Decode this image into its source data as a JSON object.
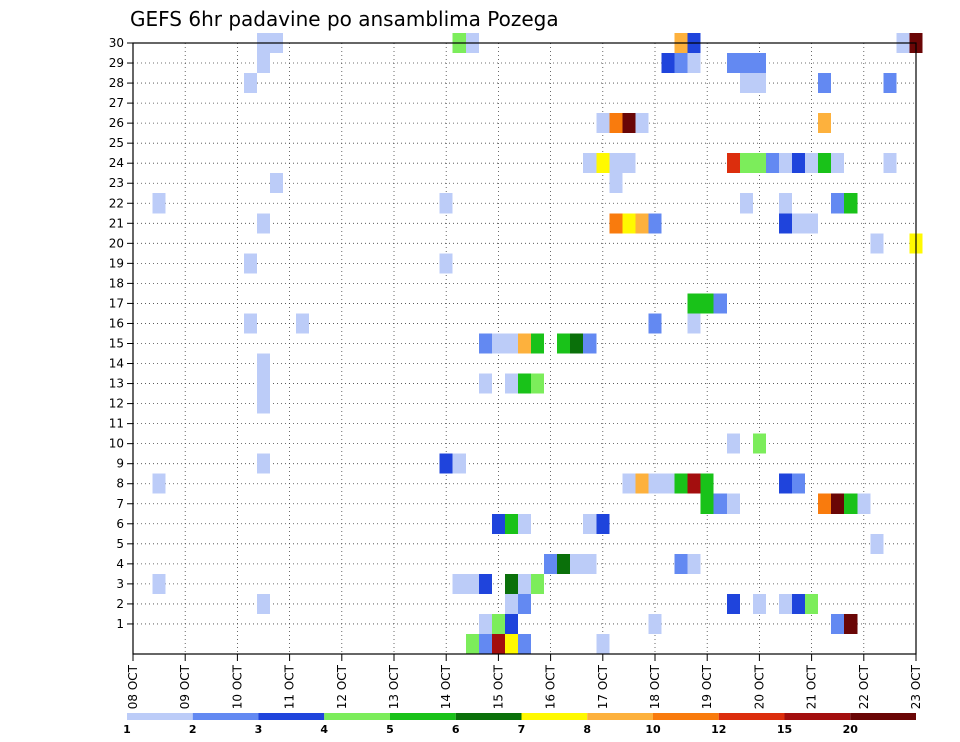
{
  "chart_data": {
    "type": "heatmap",
    "title": "GEFS 6hr padavine po ansamblima Pozega",
    "x_tick_labels": [
      "08 OCT",
      "09 OCT",
      "10 OCT",
      "11 OCT",
      "12 OCT",
      "13 OCT",
      "14 OCT",
      "15 OCT",
      "16 OCT",
      "17 OCT",
      "18 OCT",
      "19 OCT",
      "20 OCT",
      "21 OCT",
      "22 OCT",
      "23 OCT"
    ],
    "y_tick_labels": [
      "1",
      "2",
      "3",
      "4",
      "5",
      "6",
      "7",
      "8",
      "9",
      "10",
      "11",
      "12",
      "13",
      "14",
      "15",
      "16",
      "17",
      "18",
      "19",
      "20",
      "21",
      "22",
      "23",
      "24",
      "25",
      "26",
      "27",
      "28",
      "29",
      "30"
    ],
    "ylim": [
      0,
      30
    ],
    "steps_per_day": 4,
    "colorbar": {
      "labels": [
        "1",
        "2",
        "3",
        "4",
        "5",
        "6",
        "7",
        "8",
        "10",
        "12",
        "15",
        "20"
      ],
      "colors": [
        "#bcccf8",
        "#6389f2",
        "#1f44dc",
        "#7ced5b",
        "#19c219",
        "#0a700a",
        "#fff900",
        "#fdb13d",
        "#f97b0d",
        "#dc2e0d",
        "#a30e0e",
        "#6a0606"
      ]
    },
    "cells": [
      {
        "m": 30,
        "d": 2.5,
        "v": 1
      },
      {
        "m": 30,
        "d": 2.75,
        "v": 1
      },
      {
        "m": 30,
        "d": 6.25,
        "v": 4
      },
      {
        "m": 30,
        "d": 6.5,
        "v": 1
      },
      {
        "m": 30,
        "d": 10.5,
        "v": 8
      },
      {
        "m": 30,
        "d": 10.75,
        "v": 3
      },
      {
        "m": 30,
        "d": 14.75,
        "v": 1
      },
      {
        "m": 30,
        "d": 15,
        "v": 20
      },
      {
        "m": 29,
        "d": 2.5,
        "v": 1
      },
      {
        "m": 29,
        "d": 10.25,
        "v": 3
      },
      {
        "m": 29,
        "d": 10.5,
        "v": 2
      },
      {
        "m": 29,
        "d": 10.75,
        "v": 1
      },
      {
        "m": 29,
        "d": 11.5,
        "v": 2
      },
      {
        "m": 29,
        "d": 11.75,
        "v": 2
      },
      {
        "m": 29,
        "d": 12,
        "v": 2
      },
      {
        "m": 28,
        "d": 2.25,
        "v": 1
      },
      {
        "m": 28,
        "d": 11.75,
        "v": 1
      },
      {
        "m": 28,
        "d": 12,
        "v": 1
      },
      {
        "m": 28,
        "d": 13.25,
        "v": 2
      },
      {
        "m": 28,
        "d": 14.5,
        "v": 2
      },
      {
        "m": 26,
        "d": 9,
        "v": 1
      },
      {
        "m": 26,
        "d": 9.25,
        "v": 10
      },
      {
        "m": 26,
        "d": 9.5,
        "v": 20
      },
      {
        "m": 26,
        "d": 9.75,
        "v": 1
      },
      {
        "m": 26,
        "d": 13.25,
        "v": 8
      },
      {
        "m": 24,
        "d": 8.75,
        "v": 1
      },
      {
        "m": 24,
        "d": 9,
        "v": 7
      },
      {
        "m": 24,
        "d": 9.25,
        "v": 1
      },
      {
        "m": 24,
        "d": 9.5,
        "v": 1
      },
      {
        "m": 24,
        "d": 11.5,
        "v": 12
      },
      {
        "m": 24,
        "d": 11.75,
        "v": 4
      },
      {
        "m": 24,
        "d": 12,
        "v": 4
      },
      {
        "m": 24,
        "d": 12.25,
        "v": 2
      },
      {
        "m": 24,
        "d": 12.5,
        "v": 1
      },
      {
        "m": 24,
        "d": 12.75,
        "v": 3
      },
      {
        "m": 24,
        "d": 13,
        "v": 1
      },
      {
        "m": 24,
        "d": 13.25,
        "v": 5
      },
      {
        "m": 24,
        "d": 13.5,
        "v": 1
      },
      {
        "m": 24,
        "d": 14.5,
        "v": 1
      },
      {
        "m": 23,
        "d": 2.75,
        "v": 1
      },
      {
        "m": 23,
        "d": 9.25,
        "v": 1
      },
      {
        "m": 22,
        "d": 0.5,
        "v": 1
      },
      {
        "m": 22,
        "d": 6,
        "v": 1
      },
      {
        "m": 22,
        "d": 11.75,
        "v": 1
      },
      {
        "m": 22,
        "d": 12.5,
        "v": 1
      },
      {
        "m": 22,
        "d": 13.5,
        "v": 2
      },
      {
        "m": 22,
        "d": 13.75,
        "v": 5
      },
      {
        "m": 21,
        "d": 2.5,
        "v": 1
      },
      {
        "m": 21,
        "d": 9.25,
        "v": 10
      },
      {
        "m": 21,
        "d": 9.5,
        "v": 7
      },
      {
        "m": 21,
        "d": 9.75,
        "v": 8
      },
      {
        "m": 21,
        "d": 10,
        "v": 2
      },
      {
        "m": 21,
        "d": 12.5,
        "v": 3
      },
      {
        "m": 21,
        "d": 12.75,
        "v": 1
      },
      {
        "m": 21,
        "d": 13,
        "v": 1
      },
      {
        "m": 20,
        "d": 14.25,
        "v": 1
      },
      {
        "m": 20,
        "d": 15,
        "v": 7
      },
      {
        "m": 19,
        "d": 2.25,
        "v": 1
      },
      {
        "m": 19,
        "d": 6,
        "v": 1
      },
      {
        "m": 17,
        "d": 10.75,
        "v": 5
      },
      {
        "m": 17,
        "d": 11,
        "v": 5
      },
      {
        "m": 17,
        "d": 11.25,
        "v": 2
      },
      {
        "m": 16,
        "d": 10,
        "v": 2
      },
      {
        "m": 16,
        "d": 10.75,
        "v": 1
      },
      {
        "m": 16,
        "d": 2.25,
        "v": 1
      },
      {
        "m": 16,
        "d": 3.25,
        "v": 1
      },
      {
        "m": 15,
        "d": 6.75,
        "v": 2
      },
      {
        "m": 15,
        "d": 7,
        "v": 1
      },
      {
        "m": 15,
        "d": 7.25,
        "v": 1
      },
      {
        "m": 15,
        "d": 7.5,
        "v": 8
      },
      {
        "m": 15,
        "d": 7.75,
        "v": 5
      },
      {
        "m": 15,
        "d": 8.25,
        "v": 5
      },
      {
        "m": 15,
        "d": 8.5,
        "v": 6
      },
      {
        "m": 15,
        "d": 8.75,
        "v": 2
      },
      {
        "m": 14,
        "d": 2.5,
        "v": 1
      },
      {
        "m": 13,
        "d": 2.5,
        "v": 1
      },
      {
        "m": 13,
        "d": 6.75,
        "v": 1
      },
      {
        "m": 13,
        "d": 7.25,
        "v": 1
      },
      {
        "m": 13,
        "d": 7.5,
        "v": 5
      },
      {
        "m": 13,
        "d": 7.75,
        "v": 4
      },
      {
        "m": 12,
        "d": 2.5,
        "v": 1
      },
      {
        "m": 10,
        "d": 11.5,
        "v": 1
      },
      {
        "m": 10,
        "d": 12,
        "v": 4
      },
      {
        "m": 9,
        "d": 2.5,
        "v": 1
      },
      {
        "m": 9,
        "d": 6,
        "v": 3
      },
      {
        "m": 9,
        "d": 6.25,
        "v": 1
      },
      {
        "m": 8,
        "d": 0.5,
        "v": 1
      },
      {
        "m": 8,
        "d": 9.5,
        "v": 1
      },
      {
        "m": 8,
        "d": 9.75,
        "v": 8
      },
      {
        "m": 8,
        "d": 10,
        "v": 1
      },
      {
        "m": 8,
        "d": 10.25,
        "v": 1
      },
      {
        "m": 8,
        "d": 10.5,
        "v": 5
      },
      {
        "m": 8,
        "d": 10.75,
        "v": 15
      },
      {
        "m": 8,
        "d": 11,
        "v": 5
      },
      {
        "m": 8,
        "d": 12.5,
        "v": 3
      },
      {
        "m": 8,
        "d": 12.75,
        "v": 2
      },
      {
        "m": 7,
        "d": 11,
        "v": 5
      },
      {
        "m": 7,
        "d": 11.25,
        "v": 2
      },
      {
        "m": 7,
        "d": 11.5,
        "v": 1
      },
      {
        "m": 7,
        "d": 13.25,
        "v": 10
      },
      {
        "m": 7,
        "d": 13.5,
        "v": 20
      },
      {
        "m": 7,
        "d": 13.75,
        "v": 5
      },
      {
        "m": 7,
        "d": 14,
        "v": 1
      },
      {
        "m": 6,
        "d": 7,
        "v": 3
      },
      {
        "m": 6,
        "d": 7.25,
        "v": 5
      },
      {
        "m": 6,
        "d": 7.5,
        "v": 1
      },
      {
        "m": 6,
        "d": 8.75,
        "v": 1
      },
      {
        "m": 6,
        "d": 9,
        "v": 3
      },
      {
        "m": 5,
        "d": 14.25,
        "v": 1
      },
      {
        "m": 4,
        "d": 8,
        "v": 2
      },
      {
        "m": 4,
        "d": 8.25,
        "v": 6
      },
      {
        "m": 4,
        "d": 8.5,
        "v": 1
      },
      {
        "m": 4,
        "d": 8.75,
        "v": 1
      },
      {
        "m": 4,
        "d": 10.5,
        "v": 2
      },
      {
        "m": 4,
        "d": 10.75,
        "v": 1
      },
      {
        "m": 3,
        "d": 0.5,
        "v": 1
      },
      {
        "m": 3,
        "d": 6.25,
        "v": 1
      },
      {
        "m": 3,
        "d": 6.5,
        "v": 1
      },
      {
        "m": 3,
        "d": 6.75,
        "v": 3
      },
      {
        "m": 3,
        "d": 7.25,
        "v": 6
      },
      {
        "m": 3,
        "d": 7.5,
        "v": 1
      },
      {
        "m": 3,
        "d": 7.75,
        "v": 4
      },
      {
        "m": 2,
        "d": 2.5,
        "v": 1
      },
      {
        "m": 2,
        "d": 7.25,
        "v": 1
      },
      {
        "m": 2,
        "d": 7.5,
        "v": 2
      },
      {
        "m": 2,
        "d": 11.5,
        "v": 3
      },
      {
        "m": 2,
        "d": 12,
        "v": 1
      },
      {
        "m": 2,
        "d": 12.5,
        "v": 1
      },
      {
        "m": 2,
        "d": 12.75,
        "v": 3
      },
      {
        "m": 2,
        "d": 13,
        "v": 4
      },
      {
        "m": 1,
        "d": 6.75,
        "v": 1
      },
      {
        "m": 1,
        "d": 7,
        "v": 4
      },
      {
        "m": 1,
        "d": 7.25,
        "v": 3
      },
      {
        "m": 1,
        "d": 10,
        "v": 1
      },
      {
        "m": 1,
        "d": 13.5,
        "v": 2
      },
      {
        "m": 1,
        "d": 13.75,
        "v": 20
      },
      {
        "m": 0,
        "d": 6.5,
        "v": 4
      },
      {
        "m": 0,
        "d": 6.75,
        "v": 2
      },
      {
        "m": 0,
        "d": 7,
        "v": 15
      },
      {
        "m": 0,
        "d": 7.25,
        "v": 7
      },
      {
        "m": 0,
        "d": 7.5,
        "v": 2
      },
      {
        "m": 0,
        "d": 9,
        "v": 1
      }
    ]
  }
}
